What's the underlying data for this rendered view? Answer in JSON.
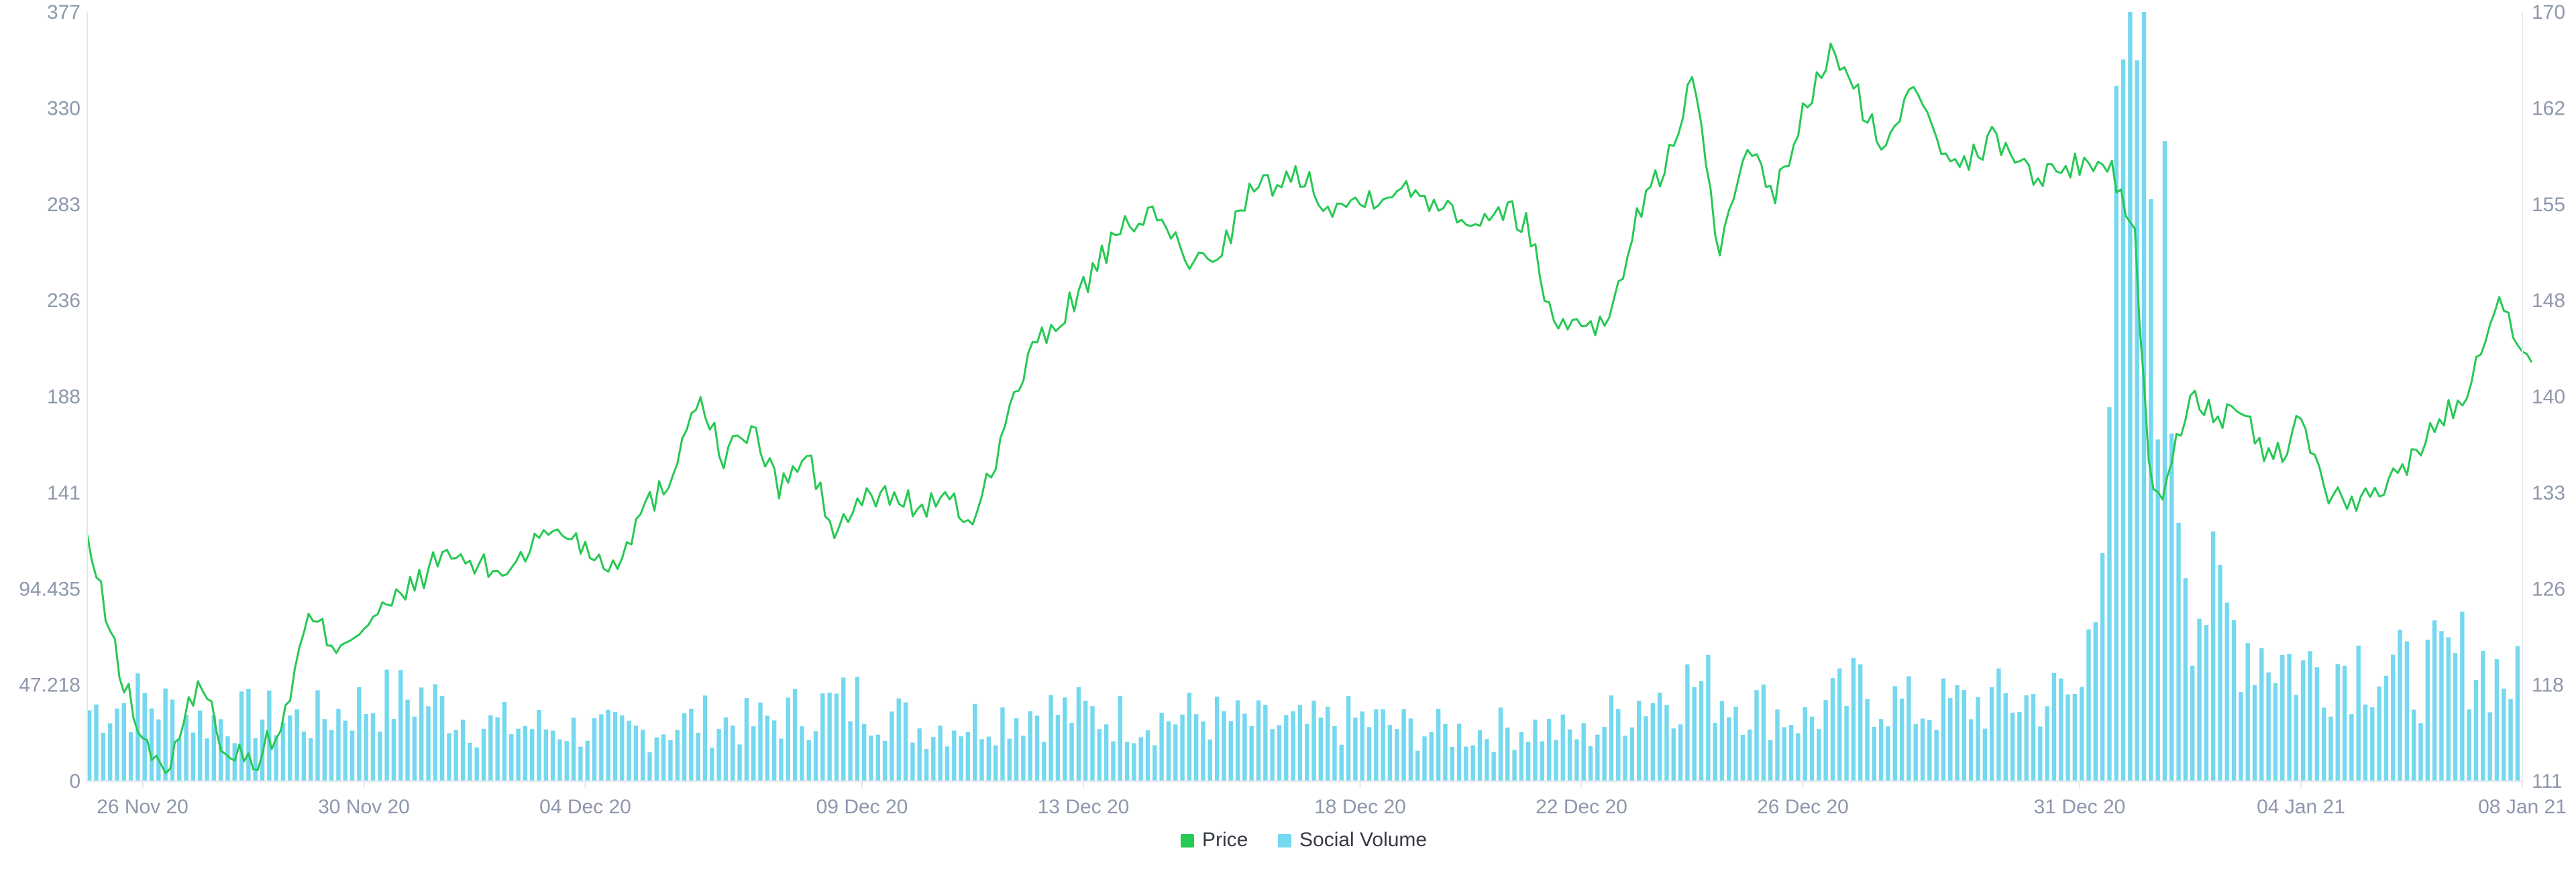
{
  "chart_data": {
    "type": "line+bar",
    "title": "",
    "xlabel": "",
    "x_range": [
      "2020-11-25",
      "2021-01-08"
    ],
    "x_ticks": [
      {
        "date": "2020-11-26",
        "label": "26 Nov 20"
      },
      {
        "date": "2020-11-30",
        "label": "30 Nov 20"
      },
      {
        "date": "2020-12-04",
        "label": "04 Dec 20"
      },
      {
        "date": "2020-12-09",
        "label": "09 Dec 20"
      },
      {
        "date": "2020-12-13",
        "label": "13 Dec 20"
      },
      {
        "date": "2020-12-18",
        "label": "18 Dec 20"
      },
      {
        "date": "2020-12-22",
        "label": "22 Dec 20"
      },
      {
        "date": "2020-12-26",
        "label": "26 Dec 20"
      },
      {
        "date": "2020-12-31",
        "label": "31 Dec 20"
      },
      {
        "date": "2021-01-04",
        "label": "04 Jan 21"
      },
      {
        "date": "2021-01-08",
        "label": "08 Jan 21"
      }
    ],
    "y_left": {
      "ylim": [
        0,
        377
      ],
      "ticks": [
        "0",
        "47.218",
        "94.435",
        "141",
        "188",
        "236",
        "283",
        "330",
        "377"
      ]
    },
    "y_right": {
      "ylim": [
        111,
        170
      ],
      "ticks": [
        "111",
        "118",
        "126",
        "133",
        "140",
        "148",
        "155",
        "162",
        "170"
      ]
    },
    "grid": false,
    "legend": {
      "placement": "bottom-center"
    },
    "series": [
      {
        "name": "Price",
        "type": "line",
        "axis": "right",
        "color": "#26c953",
        "points": [
          [
            "2020-11-25",
            129.5
          ],
          [
            "2020-11-25T12:00",
            121
          ],
          [
            "2020-11-26",
            114
          ],
          [
            "2020-11-26T12:00",
            111.8
          ],
          [
            "2020-11-27",
            119
          ],
          [
            "2020-11-27T12:00",
            113.5
          ],
          [
            "2020-11-28",
            112.5
          ],
          [
            "2020-11-28T12:00",
            115
          ],
          [
            "2020-11-29",
            123.5
          ],
          [
            "2020-11-29T12:00",
            121.5
          ],
          [
            "2020-11-30",
            123
          ],
          [
            "2020-11-30T12:00",
            124.5
          ],
          [
            "2020-12-01",
            126.5
          ],
          [
            "2020-12-01T12:00",
            128.5
          ],
          [
            "2020-12-02",
            127.5
          ],
          [
            "2020-12-02T12:00",
            127
          ],
          [
            "2020-12-03",
            129
          ],
          [
            "2020-12-03T12:00",
            130.5
          ],
          [
            "2020-12-04",
            129
          ],
          [
            "2020-12-04T12:00",
            127.5
          ],
          [
            "2020-12-05",
            131.5
          ],
          [
            "2020-12-05T12:00",
            134
          ],
          [
            "2020-12-06",
            140.5
          ],
          [
            "2020-12-06T12:00",
            136
          ],
          [
            "2020-12-07",
            138
          ],
          [
            "2020-12-07T12:00",
            133.5
          ],
          [
            "2020-12-08",
            136
          ],
          [
            "2020-12-08T12:00",
            130
          ],
          [
            "2020-12-09",
            132.5
          ],
          [
            "2020-12-09T12:00",
            133
          ],
          [
            "2020-12-10",
            132
          ],
          [
            "2020-12-10T12:00",
            132.5
          ],
          [
            "2020-12-11",
            131
          ],
          [
            "2020-12-11T12:00",
            137
          ],
          [
            "2020-12-12",
            143.5
          ],
          [
            "2020-12-12T12:00",
            146
          ],
          [
            "2020-12-13",
            149
          ],
          [
            "2020-12-13T12:00",
            152
          ],
          [
            "2020-12-14",
            154.5
          ],
          [
            "2020-12-14T12:00",
            153.5
          ],
          [
            "2020-12-15",
            150.5
          ],
          [
            "2020-12-15T12:00",
            152
          ],
          [
            "2020-12-16",
            156
          ],
          [
            "2020-12-16T12:00",
            157
          ],
          [
            "2020-12-17",
            157.5
          ],
          [
            "2020-12-17T12:00",
            155
          ],
          [
            "2020-12-18",
            155.5
          ],
          [
            "2020-12-18T12:00",
            156.5
          ],
          [
            "2020-12-19",
            156
          ],
          [
            "2020-12-19T12:00",
            155.5
          ],
          [
            "2020-12-20",
            154
          ],
          [
            "2020-12-20T12:00",
            155
          ],
          [
            "2020-12-21",
            154
          ],
          [
            "2020-12-21T12:00",
            146
          ],
          [
            "2020-12-22",
            146.5
          ],
          [
            "2020-12-22T12:00",
            146
          ],
          [
            "2020-12-23",
            154.5
          ],
          [
            "2020-12-23T12:00",
            158
          ],
          [
            "2020-12-24",
            165
          ],
          [
            "2020-12-24T12:00",
            151.5
          ],
          [
            "2020-12-25",
            159
          ],
          [
            "2020-12-25T12:00",
            156
          ],
          [
            "2020-12-26",
            162
          ],
          [
            "2020-12-26T12:00",
            167
          ],
          [
            "2020-12-27",
            163.5
          ],
          [
            "2020-12-27T12:00",
            159
          ],
          [
            "2020-12-28",
            165
          ],
          [
            "2020-12-28T12:00",
            160
          ],
          [
            "2020-12-29",
            158.5
          ],
          [
            "2020-12-29T12:00",
            160.5
          ],
          [
            "2020-12-30",
            158
          ],
          [
            "2020-12-30T12:00",
            157.5
          ],
          [
            "2020-12-31",
            158.5
          ],
          [
            "2020-12-31T12:00",
            158.5
          ],
          [
            "2021-01-01",
            153
          ],
          [
            "2021-01-01T06:00",
            135
          ],
          [
            "2021-01-01T12:00",
            132.5
          ],
          [
            "2021-01-02",
            141
          ],
          [
            "2021-01-02T12:00",
            139
          ],
          [
            "2021-01-03",
            138.5
          ],
          [
            "2021-01-03T12:00",
            135.5
          ],
          [
            "2021-01-04",
            138.5
          ],
          [
            "2021-01-04T12:00",
            133
          ],
          [
            "2021-01-05",
            132
          ],
          [
            "2021-01-05T12:00",
            133.5
          ],
          [
            "2021-01-06",
            136
          ],
          [
            "2021-01-06T12:00",
            138.5
          ],
          [
            "2021-01-07",
            141
          ],
          [
            "2021-01-07T12:00",
            148
          ],
          [
            "2021-01-08T04:00",
            143.5
          ]
        ]
      },
      {
        "name": "Social Volume",
        "type": "bar",
        "axis": "left",
        "color": "#74d8ef",
        "points": [
          [
            "2020-11-25",
            35
          ],
          [
            "2020-11-26",
            40
          ],
          [
            "2020-11-27",
            30
          ],
          [
            "2020-11-28",
            32
          ],
          [
            "2020-11-29",
            30
          ],
          [
            "2020-11-30",
            38
          ],
          [
            "2020-12-01",
            42
          ],
          [
            "2020-12-02",
            28
          ],
          [
            "2020-12-03",
            27
          ],
          [
            "2020-12-04",
            25
          ],
          [
            "2020-12-05",
            24
          ],
          [
            "2020-12-06",
            30
          ],
          [
            "2020-12-07",
            28
          ],
          [
            "2020-12-08",
            35
          ],
          [
            "2020-12-09",
            40
          ],
          [
            "2020-12-10",
            26
          ],
          [
            "2020-12-11",
            30
          ],
          [
            "2020-12-12",
            35
          ],
          [
            "2020-12-13",
            33
          ],
          [
            "2020-12-14",
            30
          ],
          [
            "2020-12-15",
            32
          ],
          [
            "2020-12-16",
            28
          ],
          [
            "2020-12-17",
            27
          ],
          [
            "2020-12-18",
            30
          ],
          [
            "2020-12-19",
            25
          ],
          [
            "2020-12-20",
            24
          ],
          [
            "2020-12-21",
            27
          ],
          [
            "2020-12-22",
            22
          ],
          [
            "2020-12-23",
            40
          ],
          [
            "2020-12-24",
            48
          ],
          [
            "2020-12-25",
            38
          ],
          [
            "2020-12-26",
            30
          ],
          [
            "2020-12-27",
            45
          ],
          [
            "2020-12-28",
            35
          ],
          [
            "2020-12-29",
            38
          ],
          [
            "2020-12-30",
            40
          ],
          [
            "2020-12-31",
            42
          ],
          [
            "2021-01-01",
            370
          ],
          [
            "2021-01-02",
            95
          ],
          [
            "2021-01-03",
            70
          ],
          [
            "2021-01-04",
            55
          ],
          [
            "2021-01-05",
            60
          ],
          [
            "2021-01-06",
            50
          ],
          [
            "2021-01-07",
            62
          ],
          [
            "2021-01-08",
            45
          ]
        ]
      }
    ]
  },
  "legend": {
    "items": [
      {
        "label": "Price",
        "color": "#26c953"
      },
      {
        "label": "Social Volume",
        "color": "#74d8ef"
      }
    ]
  },
  "style": {
    "axis_color": "#e4e7ef",
    "tick_text_color": "#8e97ad"
  }
}
